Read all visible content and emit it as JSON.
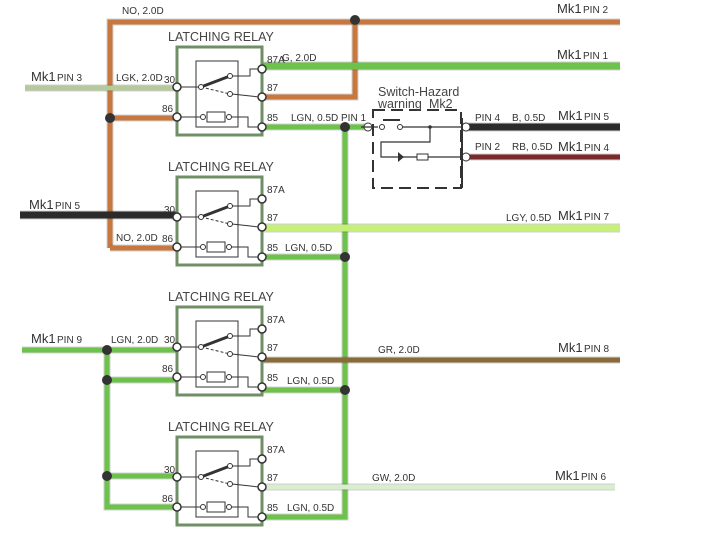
{
  "colors": {
    "brown_orange": "#c8783e",
    "green": "#6cc24a",
    "light_green": "#c6f07a",
    "gray_green": "#b5c99a",
    "black": "#2b2b2b",
    "dark_red": "#7a2a2a",
    "brown": "#8a6a38",
    "pale_green": "#d8eecf",
    "relay_box": "#6f8f66"
  },
  "relays": [
    {
      "title": "LATCHING RELAY",
      "pins": {
        "p87a": "87A",
        "p30": "30",
        "p87": "87",
        "p86": "86",
        "p85": "85"
      }
    },
    {
      "title": "LATCHING RELAY",
      "pins": {
        "p87a": "87A",
        "p30": "30",
        "p87": "87",
        "p86": "86",
        "p85": "85"
      }
    },
    {
      "title": "LATCHING RELAY",
      "pins": {
        "p87a": "87A",
        "p30": "30",
        "p87": "87",
        "p86": "86",
        "p85": "85"
      }
    },
    {
      "title": "LATCHING RELAY",
      "pins": {
        "p87a": "87A",
        "p30": "30",
        "p87": "87",
        "p86": "86",
        "p85": "85"
      }
    }
  ],
  "wires": {
    "top": {
      "label": "NO, 2.0D",
      "mk": "Mk1",
      "pin": "PIN 2"
    },
    "g": {
      "label": "G, 2.0D",
      "mk": "Mk1",
      "pin": "PIN 1"
    },
    "in3": {
      "mk": "Mk1",
      "pin": "PIN 3",
      "label": "LGK, 2.0D"
    },
    "lgn1": {
      "label": "LGN, 0.5D",
      "pin": "PIN 1"
    },
    "b": {
      "pin_left": "PIN 4",
      "label": "B, 0.5D",
      "mk": "Mk1",
      "pin": "PIN 5"
    },
    "rb": {
      "pin_left": "PIN 2",
      "label": "RB, 0.5D",
      "mk": "Mk1",
      "pin": "PIN 4"
    },
    "in5": {
      "mk": "Mk1",
      "pin": "PIN 5"
    },
    "no2": {
      "label": "NO, 2.0D"
    },
    "lgy": {
      "label": "LGY, 0.5D",
      "mk": "Mk1",
      "pin": "PIN 7"
    },
    "lgn2": {
      "label": "LGN, 0.5D"
    },
    "in9": {
      "mk": "Mk1",
      "pin": "PIN 9",
      "label": "LGN, 2.0D"
    },
    "gr": {
      "label": "GR, 2.0D",
      "mk": "Mk1",
      "pin": "PIN 8"
    },
    "lgn3": {
      "label": "LGN, 0.5D"
    },
    "gw": {
      "label": "GW, 2.0D",
      "mk": "Mk1",
      "pin": "PIN 6"
    },
    "lgn4": {
      "label": "LGN, 0.5D"
    }
  },
  "switch": {
    "title": "Switch-Hazard",
    "subtitle": "warning",
    "mk": "Mk2"
  }
}
